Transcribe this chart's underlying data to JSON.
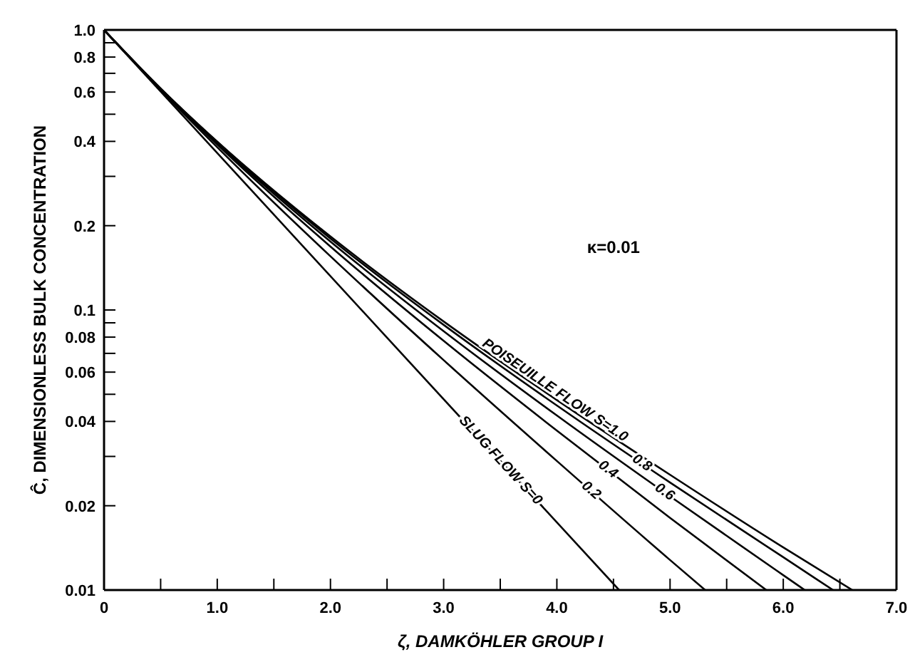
{
  "chart_data": {
    "type": "line",
    "xlabel": "ζ, DAMKÖHLER GROUP I",
    "ylabel": "Ĉ, DIMENSIONLESS BULK CONCENTRATION",
    "log": "y",
    "xlim": [
      0,
      7
    ],
    "ylim": [
      0.01,
      1
    ],
    "xticks": [
      0,
      {
        "value": 0.5,
        "label": null
      },
      {
        "value": 1,
        "label": "1.0"
      },
      {
        "value": 1.5,
        "label": null
      },
      {
        "value": 2,
        "label": "2.0"
      },
      {
        "value": 2.5,
        "label": null
      },
      {
        "value": 3,
        "label": "3.0"
      },
      {
        "value": 3.5,
        "label": null
      },
      {
        "value": 4,
        "label": "4.0"
      },
      {
        "value": 4.5,
        "label": null
      },
      {
        "value": 5,
        "label": "5.0"
      },
      {
        "value": 5.5,
        "label": null
      },
      {
        "value": 6,
        "label": "6.0"
      },
      {
        "value": 6.5,
        "label": null
      },
      {
        "value": 7,
        "label": "7.0"
      }
    ],
    "yticks": [
      0.01,
      0.02,
      {
        "value": 0.03,
        "label": null
      },
      0.04,
      {
        "value": 0.05,
        "label": null
      },
      0.06,
      {
        "value": 0.07,
        "label": null
      },
      0.08,
      {
        "value": 0.09,
        "label": null
      },
      0.1,
      0.2,
      {
        "value": 0.3,
        "label": null
      },
      0.4,
      {
        "value": 0.5,
        "label": null
      },
      0.6,
      {
        "value": 0.7,
        "label": null
      },
      0.8,
      {
        "value": 0.9,
        "label": null
      },
      {
        "value": 1,
        "label": "1.0"
      }
    ],
    "grid": false,
    "marker": "none",
    "line_style": "solid",
    "annotations": [
      "κ=0.01"
    ],
    "series": [
      {
        "name": "POISEUILLE FLOW S=1.0",
        "color": "#000000",
        "x": [
          0,
          0.5,
          1,
          2,
          3,
          4,
          5,
          6,
          6.61
        ],
        "values": [
          1,
          0.618,
          0.399,
          0.183,
          0.091,
          0.0477,
          0.0258,
          0.0142,
          0.01
        ]
      },
      {
        "name": "0.8",
        "color": "#000000",
        "x": [
          0,
          0.5,
          1,
          2,
          3,
          4,
          5,
          6,
          6.44
        ],
        "values": [
          1,
          0.617,
          0.398,
          0.18,
          0.0885,
          0.0456,
          0.0242,
          0.0131,
          0.01
        ]
      },
      {
        "name": "0.6",
        "color": "#000000",
        "x": [
          0,
          0.5,
          1,
          2,
          3,
          4,
          5,
          6,
          6.19
        ],
        "values": [
          1,
          0.616,
          0.394,
          0.1755,
          0.084,
          0.042,
          0.0216,
          0.0113,
          0.01
        ]
      },
      {
        "name": "0.4",
        "color": "#000000",
        "x": [
          0,
          0.5,
          1,
          2,
          3,
          4,
          5,
          5.85
        ],
        "values": [
          1,
          0.614,
          0.39,
          0.1685,
          0.0776,
          0.0371,
          0.0181,
          0.01
        ]
      },
      {
        "name": "0.2",
        "color": "#000000",
        "x": [
          0,
          0.5,
          1,
          2,
          3,
          4,
          5,
          5.31
        ],
        "values": [
          1,
          0.61,
          0.381,
          0.1555,
          0.0662,
          0.0289,
          0.0128,
          0.01
        ]
      },
      {
        "name": "SLUG FLOW S=0",
        "color": "#000000",
        "x": [
          0,
          4.55
        ],
        "values": [
          1,
          0.01
        ]
      }
    ]
  }
}
